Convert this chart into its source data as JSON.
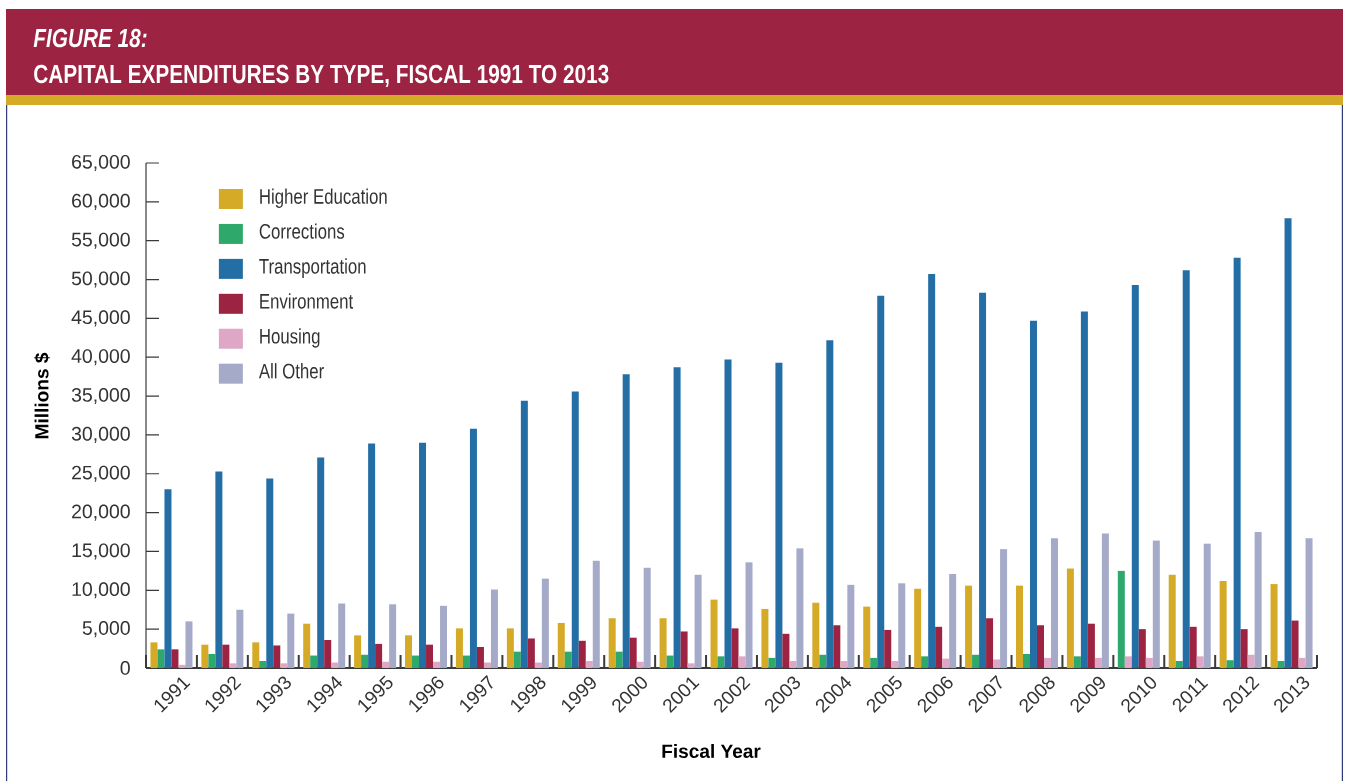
{
  "chart_data": {
    "type": "bar",
    "title": "FIGURE 18:",
    "subtitle": "CAPITAL EXPENDITURES BY TYPE, FISCAL 1991 TO 2013",
    "xlabel": "Fiscal Year",
    "ylabel": "Millions $",
    "categories": [
      "1991",
      "1992",
      "1993",
      "1994",
      "1995",
      "1996",
      "1997",
      "1998",
      "1999",
      "2000",
      "2001",
      "2002",
      "2003",
      "2004",
      "2005",
      "2006",
      "2007",
      "2008",
      "2009",
      "2010",
      "2011",
      "2012",
      "2013"
    ],
    "series": [
      {
        "name": "Higher Education",
        "color": "#D4AA27",
        "colors": [
          "#D4AA27",
          "#D4AA27",
          "#D4AA27",
          "#D4AA27",
          "#D4AA27",
          "#D4AA27",
          "#D4AA27",
          "#D4AA27",
          "#D4AA27",
          "#D4AA27",
          "#D4AA27",
          "#D4AA27",
          "#D4AA27",
          "#D4AA27",
          "#D4AA27",
          "#D4AA27",
          "#D4AA27",
          "#D4AA27",
          "#D4AA27",
          "#2FA86B",
          "#D4AA27",
          "#D4AA27",
          "#D4AA27"
        ],
        "values": [
          3300,
          3000,
          3300,
          5700,
          4200,
          4200,
          5100,
          5100,
          5800,
          6400,
          6400,
          8800,
          7600,
          8400,
          7900,
          10200,
          10600,
          10600,
          12800,
          12500,
          12000,
          11200,
          10800
        ]
      },
      {
        "name": "Corrections",
        "color": "#2FA86B",
        "colors": [
          "#2FA86B",
          "#2FA86B",
          "#2FA86B",
          "#2FA86B",
          "#2FA86B",
          "#2FA86B",
          "#2FA86B",
          "#2FA86B",
          "#2FA86B",
          "#2FA86B",
          "#2FA86B",
          "#2FA86B",
          "#2FA86B",
          "#2FA86B",
          "#2FA86B",
          "#2FA86B",
          "#2FA86B",
          "#2FA86B",
          "#2FA86B",
          "#DDA7C5",
          "#2FA86B",
          "#2FA86B",
          "#2FA86B"
        ],
        "values": [
          2400,
          1800,
          900,
          1600,
          1700,
          1600,
          1600,
          2100,
          2100,
          2100,
          1600,
          1500,
          1300,
          1700,
          1300,
          1500,
          1700,
          1800,
          1500,
          1500,
          900,
          1000,
          900
        ]
      },
      {
        "name": "Transportation",
        "color": "#246EA6",
        "values": [
          23000,
          25300,
          24400,
          27100,
          28900,
          29000,
          30800,
          34400,
          35600,
          37800,
          38700,
          39700,
          39300,
          42200,
          47900,
          50700,
          48300,
          44700,
          45900,
          49300,
          51200,
          52800,
          57900
        ]
      },
      {
        "name": "Environment",
        "color": "#9C2341",
        "values": [
          2400,
          3000,
          2900,
          3600,
          3100,
          3000,
          2700,
          3800,
          3500,
          3900,
          4700,
          5100,
          4400,
          5500,
          4900,
          5300,
          6400,
          5500,
          5700,
          5000,
          5300,
          5000,
          6100
        ]
      },
      {
        "name": "Housing",
        "color": "#DDA7C5",
        "values": [
          400,
          600,
          600,
          700,
          800,
          800,
          700,
          700,
          900,
          800,
          600,
          1500,
          900,
          900,
          900,
          1200,
          1100,
          1300,
          1300,
          1300,
          1500,
          1700,
          1300
        ]
      },
      {
        "name": "All Other",
        "color": "#A5AAC9",
        "values": [
          6000,
          7500,
          7000,
          8300,
          8200,
          8000,
          10100,
          11500,
          13800,
          12900,
          12000,
          13600,
          15400,
          10700,
          10900,
          12100,
          15300,
          16700,
          17300,
          16400,
          16000,
          17500,
          16700
        ]
      }
    ],
    "ylim": [
      0,
      65000
    ],
    "yticks": [
      {
        "value": 0,
        "label": "0"
      },
      {
        "value": 5000,
        "label": "5,000"
      },
      {
        "value": 10000,
        "label": "10,000"
      },
      {
        "value": 15000,
        "label": "15,000"
      },
      {
        "value": 20000,
        "label": "20,000"
      },
      {
        "value": 25000,
        "label": "25,000"
      },
      {
        "value": 30000,
        "label": "30,000"
      },
      {
        "value": 35000,
        "label": "35,000"
      },
      {
        "value": 40000,
        "label": "40,000"
      },
      {
        "value": 45000,
        "label": "45,000"
      },
      {
        "value": 50000,
        "label": "50,000"
      },
      {
        "value": 55000,
        "label": "55,000"
      },
      {
        "value": 60000,
        "label": "60,000"
      },
      {
        "value": 65000,
        "label": "65,000"
      }
    ],
    "legend": "top left"
  }
}
